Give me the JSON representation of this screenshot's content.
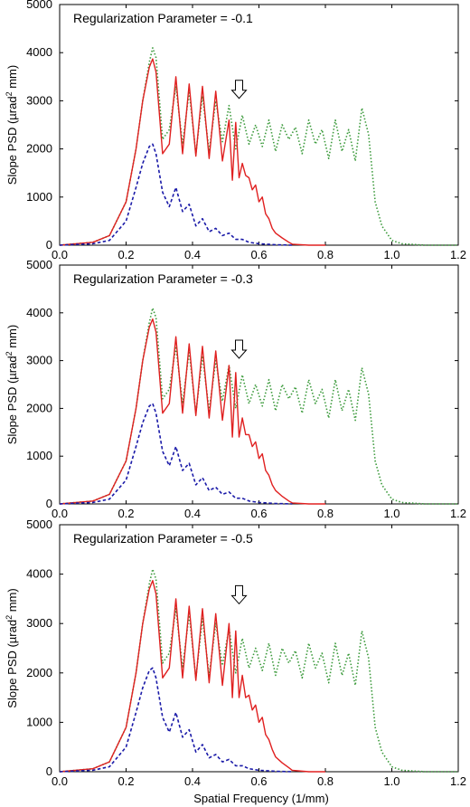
{
  "figure": {
    "ylabel_prefix": "Slope PSD (",
    "ylabel_unit_base": "µrad",
    "ylabel_unit_sup": "2",
    "ylabel_suffix": " mm)",
    "xlabel": "Spatial Frequency (1/mm)"
  },
  "chart_data": [
    {
      "type": "line",
      "annotation": "Regularization Parameter = -0.1",
      "xlim": [
        0,
        1.2
      ],
      "ylim": [
        0,
        5000
      ],
      "xticks": [
        "0.0",
        "0.2",
        "0.4",
        "0.6",
        "0.8",
        "1.0",
        "1.2"
      ],
      "yticks": [
        "0",
        "1000",
        "2000",
        "3000",
        "4000",
        "5000"
      ],
      "arrow_x": 0.54,
      "arrow_y": 3050,
      "series": [
        {
          "color": "#3b9a3b",
          "style": "dotted",
          "x": [
            0.0,
            0.1,
            0.15,
            0.2,
            0.23,
            0.25,
            0.27,
            0.28,
            0.29,
            0.31,
            0.33,
            0.35,
            0.37,
            0.39,
            0.41,
            0.43,
            0.45,
            0.47,
            0.49,
            0.51,
            0.53,
            0.55,
            0.57,
            0.59,
            0.61,
            0.63,
            0.65,
            0.67,
            0.69,
            0.71,
            0.73,
            0.75,
            0.77,
            0.79,
            0.81,
            0.83,
            0.85,
            0.87,
            0.89,
            0.91,
            0.93,
            0.95,
            0.97,
            1.0,
            1.03,
            1.1,
            1.2
          ],
          "y": [
            0,
            60,
            200,
            900,
            2000,
            3000,
            3800,
            4100,
            3900,
            2200,
            2400,
            3300,
            2100,
            3200,
            1900,
            3100,
            1950,
            3000,
            2150,
            2900,
            2000,
            2700,
            2100,
            2500,
            2050,
            2600,
            1950,
            2500,
            2200,
            2450,
            1900,
            2600,
            2100,
            2400,
            1800,
            2600,
            1950,
            2400,
            1750,
            2850,
            2300,
            900,
            400,
            100,
            30,
            0,
            0
          ]
        },
        {
          "color": "#e02020",
          "style": "solid",
          "x": [
            0.0,
            0.1,
            0.15,
            0.2,
            0.23,
            0.25,
            0.27,
            0.28,
            0.29,
            0.31,
            0.33,
            0.35,
            0.37,
            0.39,
            0.41,
            0.43,
            0.45,
            0.47,
            0.49,
            0.51,
            0.52,
            0.53,
            0.54,
            0.55,
            0.56,
            0.57,
            0.58,
            0.59,
            0.6,
            0.61,
            0.62,
            0.63,
            0.64,
            0.65,
            0.67,
            0.69,
            0.7,
            0.75,
            0.8
          ],
          "y": [
            0,
            60,
            200,
            900,
            2000,
            3000,
            3700,
            3870,
            3600,
            1900,
            2100,
            3500,
            1900,
            3350,
            1850,
            3300,
            1800,
            3200,
            1750,
            2600,
            1350,
            2550,
            1400,
            1700,
            1450,
            1400,
            1150,
            1250,
            900,
            1000,
            650,
            550,
            350,
            250,
            150,
            60,
            20,
            0,
            0
          ]
        },
        {
          "color": "#1a1aa8",
          "style": "dashed",
          "x": [
            0.0,
            0.1,
            0.15,
            0.2,
            0.23,
            0.25,
            0.27,
            0.28,
            0.29,
            0.31,
            0.33,
            0.35,
            0.37,
            0.39,
            0.41,
            0.43,
            0.45,
            0.47,
            0.49,
            0.51,
            0.53,
            0.55,
            0.57,
            0.6,
            0.65,
            0.7
          ],
          "y": [
            0,
            30,
            100,
            500,
            1200,
            1700,
            2050,
            2100,
            1900,
            1100,
            800,
            1200,
            700,
            850,
            400,
            550,
            280,
            350,
            200,
            250,
            120,
            120,
            60,
            30,
            10,
            0
          ]
        }
      ]
    },
    {
      "type": "line",
      "annotation": "Regularization Parameter = -0.3",
      "xlim": [
        0,
        1.2
      ],
      "ylim": [
        0,
        5000
      ],
      "xticks": [
        "0.0",
        "0.2",
        "0.4",
        "0.6",
        "0.8",
        "1.0",
        "1.2"
      ],
      "yticks": [
        "0",
        "1000",
        "2000",
        "3000",
        "4000",
        "5000"
      ],
      "arrow_x": 0.54,
      "arrow_y": 3050,
      "series": [
        {
          "color": "#3b9a3b",
          "style": "dotted",
          "x": [
            0.0,
            0.1,
            0.15,
            0.2,
            0.23,
            0.25,
            0.27,
            0.28,
            0.29,
            0.31,
            0.33,
            0.35,
            0.37,
            0.39,
            0.41,
            0.43,
            0.45,
            0.47,
            0.49,
            0.51,
            0.53,
            0.55,
            0.57,
            0.59,
            0.61,
            0.63,
            0.65,
            0.67,
            0.69,
            0.71,
            0.73,
            0.75,
            0.77,
            0.79,
            0.81,
            0.83,
            0.85,
            0.87,
            0.89,
            0.91,
            0.93,
            0.95,
            0.97,
            1.0,
            1.03,
            1.1,
            1.2
          ],
          "y": [
            0,
            60,
            200,
            900,
            2000,
            3000,
            3800,
            4100,
            3900,
            2200,
            2400,
            3300,
            2100,
            3200,
            1900,
            3100,
            1950,
            3000,
            2150,
            2900,
            2000,
            2700,
            2100,
            2500,
            2050,
            2600,
            1950,
            2500,
            2200,
            2450,
            1900,
            2600,
            2100,
            2400,
            1800,
            2600,
            1950,
            2400,
            1750,
            2850,
            2300,
            900,
            400,
            100,
            30,
            0,
            0
          ]
        },
        {
          "color": "#e02020",
          "style": "solid",
          "x": [
            0.0,
            0.1,
            0.15,
            0.2,
            0.23,
            0.25,
            0.27,
            0.28,
            0.29,
            0.31,
            0.33,
            0.35,
            0.37,
            0.39,
            0.41,
            0.43,
            0.45,
            0.47,
            0.49,
            0.51,
            0.52,
            0.53,
            0.54,
            0.55,
            0.56,
            0.57,
            0.58,
            0.59,
            0.6,
            0.61,
            0.62,
            0.63,
            0.64,
            0.65,
            0.67,
            0.69,
            0.7,
            0.75,
            0.8
          ],
          "y": [
            0,
            60,
            200,
            900,
            2000,
            3000,
            3700,
            3870,
            3600,
            1900,
            2100,
            3500,
            1900,
            3350,
            1850,
            3300,
            1800,
            3200,
            1750,
            2900,
            1400,
            2750,
            1400,
            1800,
            1450,
            1450,
            1200,
            1300,
            950,
            1050,
            700,
            600,
            400,
            280,
            160,
            60,
            20,
            0,
            0
          ]
        },
        {
          "color": "#1a1aa8",
          "style": "dashed",
          "x": [
            0.0,
            0.1,
            0.15,
            0.2,
            0.23,
            0.25,
            0.27,
            0.28,
            0.29,
            0.31,
            0.33,
            0.35,
            0.37,
            0.39,
            0.41,
            0.43,
            0.45,
            0.47,
            0.49,
            0.51,
            0.53,
            0.55,
            0.57,
            0.6,
            0.65,
            0.7
          ],
          "y": [
            0,
            30,
            100,
            500,
            1200,
            1700,
            2050,
            2100,
            1900,
            1100,
            800,
            1200,
            700,
            850,
            400,
            550,
            280,
            350,
            200,
            250,
            120,
            120,
            60,
            30,
            10,
            0
          ]
        }
      ]
    },
    {
      "type": "line",
      "annotation": "Regularization Parameter = -0.5",
      "xlim": [
        0,
        1.2
      ],
      "ylim": [
        0,
        5000
      ],
      "xticks": [
        "0.0",
        "0.2",
        "0.4",
        "0.6",
        "0.8",
        "1.0",
        "1.2"
      ],
      "yticks": [
        "0",
        "1000",
        "2000",
        "3000",
        "4000",
        "5000"
      ],
      "arrow_x": 0.54,
      "arrow_y": 3400,
      "series": [
        {
          "color": "#3b9a3b",
          "style": "dotted",
          "x": [
            0.0,
            0.1,
            0.15,
            0.2,
            0.23,
            0.25,
            0.27,
            0.28,
            0.29,
            0.31,
            0.33,
            0.35,
            0.37,
            0.39,
            0.41,
            0.43,
            0.45,
            0.47,
            0.49,
            0.51,
            0.53,
            0.55,
            0.57,
            0.59,
            0.61,
            0.63,
            0.65,
            0.67,
            0.69,
            0.71,
            0.73,
            0.75,
            0.77,
            0.79,
            0.81,
            0.83,
            0.85,
            0.87,
            0.89,
            0.91,
            0.93,
            0.95,
            0.97,
            1.0,
            1.03,
            1.1,
            1.2
          ],
          "y": [
            0,
            60,
            200,
            900,
            2000,
            3000,
            3800,
            4100,
            3900,
            2200,
            2400,
            3300,
            2100,
            3200,
            1900,
            3100,
            1950,
            3000,
            2150,
            2900,
            2000,
            2700,
            2100,
            2500,
            2050,
            2600,
            1950,
            2500,
            2200,
            2450,
            1900,
            2600,
            2100,
            2400,
            1800,
            2600,
            1950,
            2400,
            1750,
            2850,
            2300,
            900,
            400,
            100,
            30,
            0,
            0
          ]
        },
        {
          "color": "#e02020",
          "style": "solid",
          "x": [
            0.0,
            0.1,
            0.15,
            0.2,
            0.23,
            0.25,
            0.27,
            0.28,
            0.29,
            0.31,
            0.33,
            0.35,
            0.37,
            0.39,
            0.41,
            0.43,
            0.45,
            0.47,
            0.49,
            0.51,
            0.52,
            0.53,
            0.54,
            0.55,
            0.56,
            0.57,
            0.58,
            0.59,
            0.6,
            0.61,
            0.62,
            0.63,
            0.64,
            0.65,
            0.67,
            0.69,
            0.7,
            0.75,
            0.8
          ],
          "y": [
            0,
            60,
            200,
            900,
            2000,
            3000,
            3700,
            3870,
            3600,
            1900,
            2100,
            3500,
            1900,
            3350,
            1850,
            3300,
            1800,
            3200,
            1750,
            3000,
            1500,
            2850,
            1500,
            1950,
            1500,
            1550,
            1250,
            1350,
            1000,
            1100,
            750,
            650,
            450,
            300,
            180,
            80,
            30,
            0,
            0
          ]
        },
        {
          "color": "#1a1aa8",
          "style": "dashed",
          "x": [
            0.0,
            0.1,
            0.15,
            0.2,
            0.23,
            0.25,
            0.27,
            0.28,
            0.29,
            0.31,
            0.33,
            0.35,
            0.37,
            0.39,
            0.41,
            0.43,
            0.45,
            0.47,
            0.49,
            0.51,
            0.53,
            0.55,
            0.57,
            0.6,
            0.65,
            0.7
          ],
          "y": [
            0,
            30,
            100,
            500,
            1200,
            1700,
            2050,
            2100,
            1900,
            1100,
            800,
            1200,
            700,
            850,
            400,
            550,
            280,
            350,
            200,
            250,
            120,
            120,
            60,
            30,
            10,
            0
          ]
        }
      ]
    }
  ]
}
